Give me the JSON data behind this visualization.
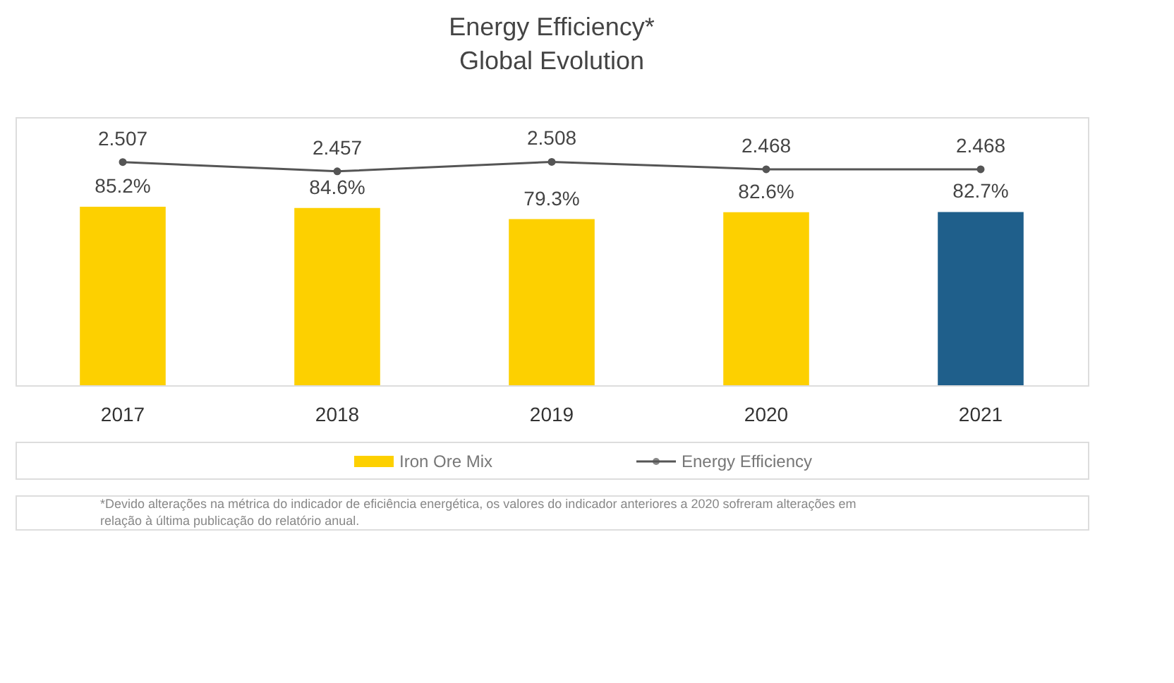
{
  "chart_data": {
    "type": "bar",
    "title": "Energy Efficiency*",
    "subtitle": "Global Evolution",
    "categories": [
      "2017",
      "2018",
      "2019",
      "2020",
      "2021"
    ],
    "series": [
      {
        "name": "Iron Ore Mix",
        "colors": [
          "#fdd000",
          "#fdd000",
          "#fdd000",
          "#fdd000",
          "#1f5f8b"
        ],
        "values": [
          85.2,
          84.6,
          79.3,
          82.6,
          82.7
        ],
        "value_labels": [
          "85.2%",
          "84.6%",
          "79.3%",
          "82.6%",
          "82.7%"
        ]
      },
      {
        "name": "Energy Efficiency",
        "type": "line",
        "axis": "y2",
        "color": "#555555",
        "marker": "circle",
        "values": [
          2.507,
          2.457,
          2.508,
          2.468,
          2.468
        ],
        "value_labels": [
          "2.507",
          "2.457",
          "2.508",
          "2.468",
          "2.468"
        ]
      }
    ],
    "ylim": [
      0,
      128
    ],
    "y2lim": [
      1.3,
      2.75
    ],
    "tick_labels": "x",
    "grid": false,
    "legend": "bottom",
    "annotations": [
      "*Devido alterações na métrica do indicador de eficiência energética, os valores do indicador anteriores a 2020 sofreram alterações em relação à última publicação do relatório anual."
    ]
  }
}
